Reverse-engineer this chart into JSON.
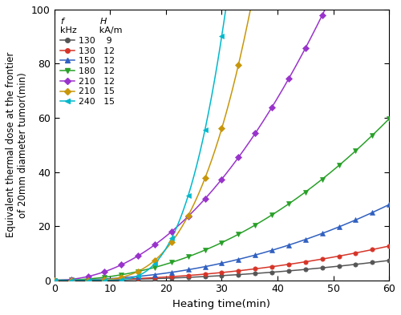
{
  "xlabel": "Heating time(min)",
  "ylabel": "Equivalent thermal dose at the frontier\nof 20mm diameter tumor(min)",
  "xlim": [
    0,
    60
  ],
  "ylim": [
    0,
    100
  ],
  "xticks": [
    0,
    10,
    20,
    30,
    40,
    50,
    60
  ],
  "yticks": [
    0,
    20,
    40,
    60,
    80,
    100
  ],
  "series": [
    {
      "label": "130    9",
      "color": "#555555",
      "marker": "o",
      "params": [
        0.00135,
        2.1,
        0.0
      ]
    },
    {
      "label": "130   12",
      "color": "#d63428",
      "marker": "o",
      "params": [
        0.0019,
        2.15,
        0.0
      ]
    },
    {
      "label": "150   12",
      "color": "#3060c0",
      "marker": "^",
      "params": [
        0.0042,
        2.15,
        0.0
      ]
    },
    {
      "label": "180   12",
      "color": "#28a028",
      "marker": "v",
      "params": [
        0.011,
        2.1,
        0.0
      ]
    },
    {
      "label": "210   12",
      "color": "#9933cc",
      "marker": "D",
      "params": [
        0.035,
        2.05,
        0.0
      ]
    },
    {
      "label": "210   15",
      "color": "#c8960a",
      "marker": "D",
      "params": [
        0.0026,
        3.1,
        5.0
      ]
    },
    {
      "label": "240   15",
      "color": "#00b8cc",
      "marker": "<",
      "params": [
        0.009,
        3.05,
        9.5
      ]
    }
  ],
  "legend_title": "$f$             $H$\nkHz        kA/m"
}
